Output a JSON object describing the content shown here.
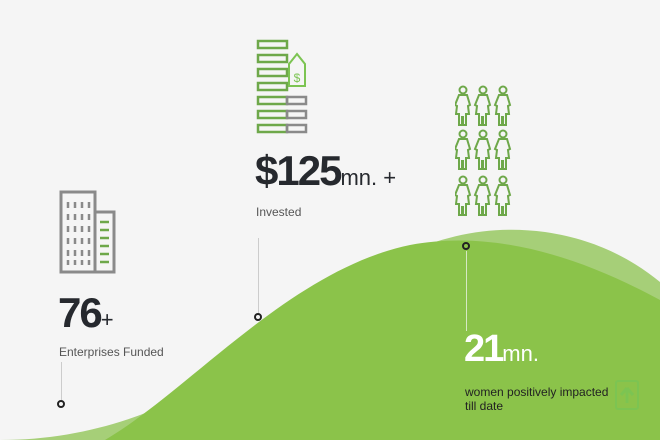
{
  "stats": [
    {
      "value": "76",
      "suffix": "+",
      "label": "Enterprises Funded",
      "icon": "buildings-icon"
    },
    {
      "value": "$125",
      "suffix": "mn. +",
      "label": "Invested",
      "icon": "money-stack-tag-icon"
    },
    {
      "value": "21",
      "suffix": "mn.",
      "label_line1": "women positively impacted",
      "label_line2": "till date",
      "icon": "women-group-icon"
    }
  ],
  "scroll_top": {
    "icon": "arrow-up-icon"
  },
  "colors": {
    "green_dark": "#8bc34a",
    "green_light": "#a6cf78",
    "icon_green": "#6ea84a",
    "icon_gray": "#8a8a8a",
    "text": "#26292e"
  }
}
